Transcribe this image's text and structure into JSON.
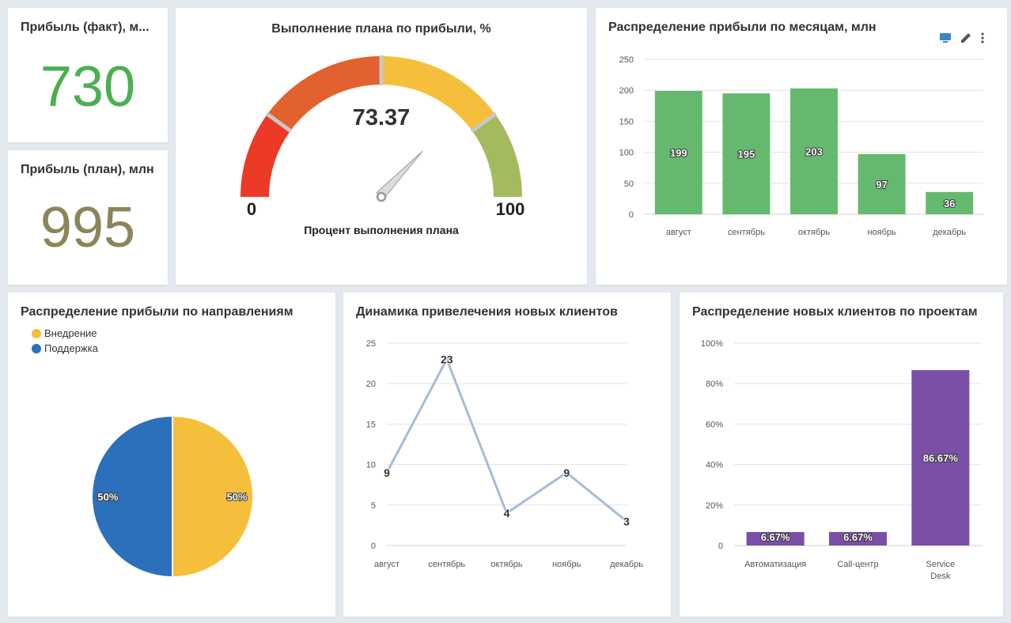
{
  "kpi_fact": {
    "title": "Прибыль (факт), м...",
    "value": "730",
    "color": "#4caf50"
  },
  "kpi_plan": {
    "title": "Прибыль (план), млн",
    "value": "995",
    "color": "#8a855a"
  },
  "gauge": {
    "title": "Выполнение плана по прибыли, %",
    "value": 73.37,
    "value_label": "73.37",
    "min_label": "0",
    "max_label": "100",
    "subtitle": "Процент выполнения плана",
    "bands": [
      {
        "from": 0,
        "to": 20,
        "color": "#ec3a26"
      },
      {
        "from": 20,
        "to": 50,
        "color": "#e2612e"
      },
      {
        "from": 50,
        "to": 80,
        "color": "#f5bf3c"
      },
      {
        "from": 80,
        "to": 100,
        "color": "#a4bb5d"
      }
    ]
  },
  "monthly_profit": {
    "title": "Распределение прибыли по месяцам, млн",
    "toolbar": [
      "monitor-icon",
      "edit-pencil-icon",
      "more-vertical-icon"
    ],
    "color": "#65b96e"
  },
  "directions": {
    "title": "Распределение прибыли по направлениям",
    "legend": [
      {
        "label": "Внедрение",
        "color": "#f5bf3c"
      },
      {
        "label": "Поддержка",
        "color": "#2c6fbb"
      }
    ]
  },
  "new_clients": {
    "title": "Динамика привелечения новых клиентов",
    "color": "#a7bbd8"
  },
  "projects": {
    "title": "Распределение новых клиентов по проектам",
    "color": "#7b4ea7"
  },
  "chart_data": [
    {
      "type": "bar",
      "title": "Распределение прибыли по месяцам, млн",
      "categories": [
        "август",
        "сентябрь",
        "октябрь",
        "ноябрь",
        "декабрь"
      ],
      "values": [
        199,
        195,
        203,
        97,
        36
      ],
      "ylim": [
        0,
        250
      ],
      "yticks": [
        "0",
        "50",
        "100",
        "150",
        "200",
        "250"
      ],
      "grid": true
    },
    {
      "type": "pie",
      "title": "Распределение прибыли по направлениям",
      "labels": [
        "Внедрение",
        "Поддержка"
      ],
      "values": [
        50,
        50
      ],
      "value_labels": [
        "50%",
        "50%"
      ],
      "legend": "top-left"
    },
    {
      "type": "line",
      "title": "Динамика привелечения новых клиентов",
      "categories": [
        "август",
        "сентябрь",
        "октябрь",
        "ноябрь",
        "декабрь"
      ],
      "values": [
        9,
        23,
        4,
        9,
        3
      ],
      "ylim": [
        0,
        25
      ],
      "yticks": [
        "0",
        "5",
        "10",
        "15",
        "20",
        "25"
      ],
      "grid": true
    },
    {
      "type": "bar",
      "title": "Распределение новых клиентов по проектам",
      "categories": [
        "Автоматизация",
        "Call-центр",
        "Service Desk"
      ],
      "category_lines": [
        [
          "Автоматизация"
        ],
        [
          "Call-центр"
        ],
        [
          "Service",
          "Desk"
        ]
      ],
      "values": [
        6.67,
        6.67,
        86.67
      ],
      "value_labels": [
        "6.67%",
        "6.67%",
        "86.67%"
      ],
      "ylim": [
        0,
        100
      ],
      "yticks": [
        "0",
        "20%",
        "40%",
        "60%",
        "80%",
        "100%"
      ],
      "grid": true
    }
  ]
}
